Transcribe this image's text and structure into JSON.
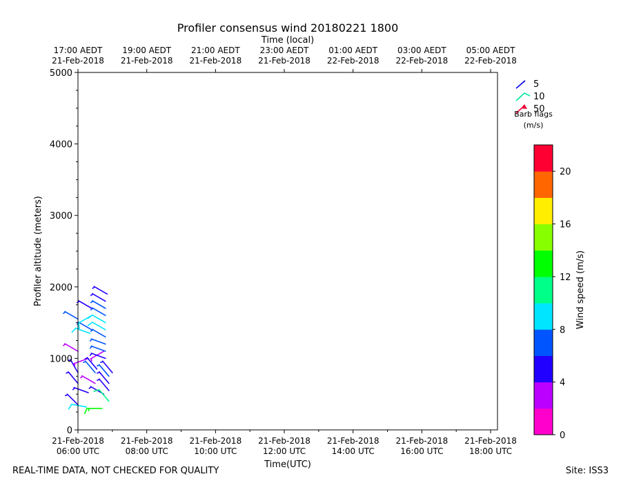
{
  "chart_data": {
    "type": "wind-barb",
    "title": "Profiler consensus wind 20180221 1800",
    "top_axis_label": "Time (local)",
    "xlabel": "Time(UTC)",
    "ylabel": "Profiler altitude (meters)",
    "ylim": [
      0,
      5000
    ],
    "y_ticks": [
      0,
      1000,
      2000,
      3000,
      4000,
      5000
    ],
    "xlim_hours_utc": [
      6,
      18.2
    ],
    "x_ticks": [
      {
        "hour": 6,
        "line1": "21-Feb-2018",
        "line2": "06:00 UTC"
      },
      {
        "hour": 8,
        "line1": "21-Feb-2018",
        "line2": "08:00 UTC"
      },
      {
        "hour": 10,
        "line1": "21-Feb-2018",
        "line2": "10:00 UTC"
      },
      {
        "hour": 12,
        "line1": "21-Feb-2018",
        "line2": "12:00 UTC"
      },
      {
        "hour": 14,
        "line1": "21-Feb-2018",
        "line2": "14:00 UTC"
      },
      {
        "hour": 16,
        "line1": "21-Feb-2018",
        "line2": "16:00 UTC"
      },
      {
        "hour": 18,
        "line1": "21-Feb-2018",
        "line2": "18:00 UTC"
      }
    ],
    "top_ticks": [
      {
        "hour": 6,
        "line1": "17:00 AEDT",
        "line2": "21-Feb-2018"
      },
      {
        "hour": 8,
        "line1": "19:00 AEDT",
        "line2": "21-Feb-2018"
      },
      {
        "hour": 10,
        "line1": "21:00 AEDT",
        "line2": "21-Feb-2018"
      },
      {
        "hour": 12,
        "line1": "23:00 AEDT",
        "line2": "21-Feb-2018"
      },
      {
        "hour": 14,
        "line1": "01:00 AEDT",
        "line2": "22-Feb-2018"
      },
      {
        "hour": 16,
        "line1": "03:00 AEDT",
        "line2": "22-Feb-2018"
      },
      {
        "hour": 18,
        "line1": "05:00 AEDT",
        "line2": "22-Feb-2018"
      }
    ],
    "barbs": [
      {
        "t": 6.0,
        "h": 350,
        "spd": 5,
        "dir": 315
      },
      {
        "t": 6.0,
        "h": 650,
        "spd": 4,
        "dir": 320
      },
      {
        "t": 6.0,
        "h": 800,
        "spd": 5,
        "dir": 330
      },
      {
        "t": 6.0,
        "h": 1100,
        "spd": 3,
        "dir": 300
      },
      {
        "t": 6.0,
        "h": 1550,
        "spd": 6,
        "dir": 300
      },
      {
        "t": 6.25,
        "h": 320,
        "spd": 9,
        "dir": 280
      },
      {
        "t": 6.3,
        "h": 520,
        "spd": 5,
        "dir": 290
      },
      {
        "t": 6.3,
        "h": 1000,
        "spd": 3,
        "dir": 250
      },
      {
        "t": 6.35,
        "h": 1350,
        "spd": 9,
        "dir": 290
      },
      {
        "t": 6.4,
        "h": 1400,
        "spd": 6,
        "dir": 300
      },
      {
        "t": 6.4,
        "h": 1600,
        "spd": 9,
        "dir": 240
      },
      {
        "t": 6.4,
        "h": 1700,
        "spd": 5,
        "dir": 300
      },
      {
        "t": 6.5,
        "h": 650,
        "spd": 3,
        "dir": 300
      },
      {
        "t": 6.5,
        "h": 800,
        "spd": 6,
        "dir": 320
      },
      {
        "t": 6.55,
        "h": 850,
        "spd": 5,
        "dir": 320
      },
      {
        "t": 6.7,
        "h": 300,
        "spd": 13,
        "dir": 270
      },
      {
        "t": 6.75,
        "h": 500,
        "spd": 4,
        "dir": 300
      },
      {
        "t": 6.75,
        "h": 1100,
        "spd": 3,
        "dir": 240
      },
      {
        "t": 6.8,
        "h": 1000,
        "spd": 5,
        "dir": 290
      },
      {
        "t": 6.8,
        "h": 1100,
        "spd": 6,
        "dir": 290
      },
      {
        "t": 6.8,
        "h": 1200,
        "spd": 7,
        "dir": 290
      },
      {
        "t": 6.8,
        "h": 1300,
        "spd": 7,
        "dir": 300
      },
      {
        "t": 6.8,
        "h": 1400,
        "spd": 8,
        "dir": 300
      },
      {
        "t": 6.8,
        "h": 1500,
        "spd": 8,
        "dir": 300
      },
      {
        "t": 6.8,
        "h": 1600,
        "spd": 7,
        "dir": 300
      },
      {
        "t": 6.8,
        "h": 1700,
        "spd": 6,
        "dir": 300
      },
      {
        "t": 6.8,
        "h": 1800,
        "spd": 5,
        "dir": 300
      },
      {
        "t": 6.85,
        "h": 1900,
        "spd": 5,
        "dir": 300
      },
      {
        "t": 6.9,
        "h": 400,
        "spd": 11,
        "dir": 320
      },
      {
        "t": 6.9,
        "h": 550,
        "spd": 5,
        "dir": 320
      },
      {
        "t": 6.9,
        "h": 650,
        "spd": 5,
        "dir": 320
      },
      {
        "t": 6.9,
        "h": 750,
        "spd": 6,
        "dir": 320
      },
      {
        "t": 7.0,
        "h": 800,
        "spd": 5,
        "dir": 320
      }
    ]
  },
  "legend": {
    "entries": [
      {
        "label": "5",
        "color": "#0000ee"
      },
      {
        "label": "10",
        "color": "#00e5a0"
      },
      {
        "label": "50",
        "color": "#ee0033"
      }
    ],
    "caption_line1": "Barb flags",
    "caption_line2": "(m/s)"
  },
  "colorbar": {
    "label": "Wind speed (m/s)",
    "min": 0,
    "max": 22,
    "ticks": [
      0,
      4,
      8,
      12,
      16,
      20
    ],
    "colors": [
      "#ff00cc",
      "#bb00ff",
      "#2200ff",
      "#0055ff",
      "#00e5ff",
      "#00ff88",
      "#00ff00",
      "#88ff00",
      "#ffee00",
      "#ff6600",
      "#ff0033"
    ]
  },
  "footer": {
    "left": "REAL-TIME DATA, NOT CHECKED FOR QUALITY",
    "right": "Site: ISS3"
  }
}
